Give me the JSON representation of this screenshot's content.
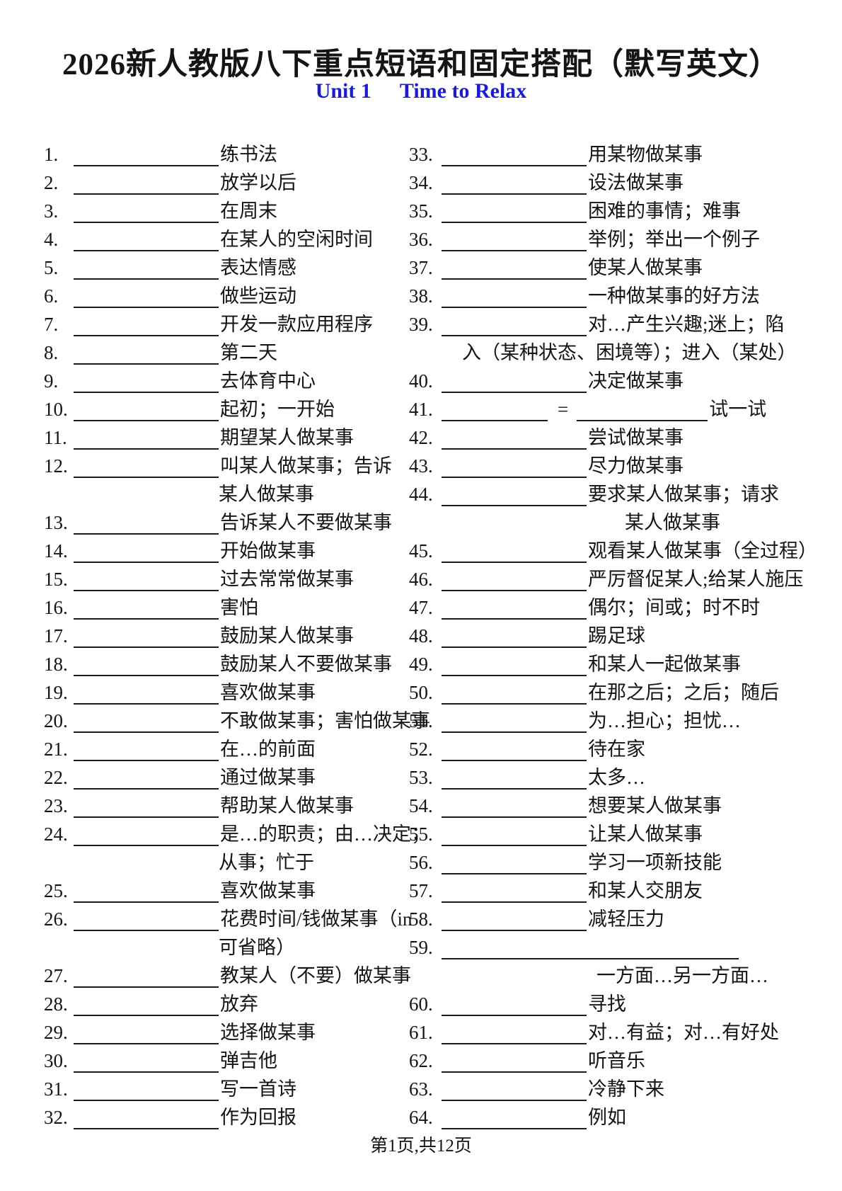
{
  "header": {
    "title": "2026新人教版八下重点短语和固定搭配（默写英文）",
    "unit": "Unit 1",
    "topic": "Time to Relax",
    "subtitle_color": "#1b1bd0"
  },
  "footer": {
    "page_label": "第1页,共12页"
  },
  "symbols": {
    "equals": "="
  },
  "items": {
    "left": [
      {
        "num": "1.",
        "gloss": "练书法"
      },
      {
        "num": "2.",
        "gloss": "放学以后"
      },
      {
        "num": "3.",
        "gloss": "在周末"
      },
      {
        "num": "4.",
        "gloss": "在某人的空闲时间"
      },
      {
        "num": "5.",
        "gloss": "表达情感"
      },
      {
        "num": "6.",
        "gloss": "做些运动"
      },
      {
        "num": "7.",
        "gloss": "开发一款应用程序"
      },
      {
        "num": "8.",
        "gloss": "第二天"
      },
      {
        "num": "9.",
        "gloss": "去体育中心"
      },
      {
        "num": "10.",
        "gloss": "起初；一开始"
      },
      {
        "num": "11.",
        "gloss": "期望某人做某事"
      },
      {
        "num": "12.",
        "gloss": "叫某人做某事；告诉",
        "cont": "某人做某事",
        "cont_align": "gloss"
      },
      {
        "num": "13.",
        "gloss": "告诉某人不要做某事"
      },
      {
        "num": "14.",
        "gloss": "开始做某事"
      },
      {
        "num": "15.",
        "gloss": "过去常常做某事"
      },
      {
        "num": "16.",
        "gloss": "害怕"
      },
      {
        "num": "17.",
        "gloss": "鼓励某人做某事"
      },
      {
        "num": "18.",
        "gloss": "鼓励某人不要做某事"
      },
      {
        "num": "19.",
        "gloss": "喜欢做某事"
      },
      {
        "num": "20.",
        "gloss": "不敢做某事；害怕做某事"
      },
      {
        "num": "21.",
        "gloss": "在…的前面"
      },
      {
        "num": "22.",
        "gloss": "通过做某事"
      },
      {
        "num": "23.",
        "gloss": "帮助某人做某事"
      },
      {
        "num": "24.",
        "gloss": "是…的职责；由…决定；",
        "cont": "从事；忙于",
        "cont_align": "gloss"
      },
      {
        "num": "25.",
        "gloss": "喜欢做某事"
      },
      {
        "num": "26.",
        "gloss": "花费时间/钱做某事（in",
        "cont": "可省略）",
        "cont_align": "gloss"
      },
      {
        "num": "27.",
        "gloss": "教某人（不要）做某事"
      },
      {
        "num": "28.",
        "gloss": "放弃"
      },
      {
        "num": "29.",
        "gloss": "选择做某事"
      },
      {
        "num": "30.",
        "gloss": "弹吉他"
      },
      {
        "num": "31.",
        "gloss": "写一首诗"
      },
      {
        "num": "32.",
        "gloss": "作为回报"
      }
    ],
    "right": [
      {
        "num": "33.",
        "gloss": "用某物做某事"
      },
      {
        "num": "34.",
        "gloss": "设法做某事"
      },
      {
        "num": "35.",
        "gloss": "困难的事情；难事"
      },
      {
        "num": "36.",
        "gloss": "举例；举出一个例子"
      },
      {
        "num": "37.",
        "gloss": "使某人做某事"
      },
      {
        "num": "38.",
        "gloss": "一种做某事的好方法"
      },
      {
        "num": "39.",
        "gloss": "对…产生兴趣;迷上；陷",
        "cont": "入（某种状态、困境等）；进入（某处）",
        "cont_align": "hang"
      },
      {
        "num": "40.",
        "gloss": "决定做某事"
      },
      {
        "num": "41.",
        "type": "double",
        "gloss": "试一试"
      },
      {
        "num": "42.",
        "gloss": "尝试做某事"
      },
      {
        "num": "43.",
        "gloss": "尽力做某事"
      },
      {
        "num": "44.",
        "gloss": "要求某人做某事；请求",
        "cont": "某人做某事",
        "cont_align": "deep"
      },
      {
        "num": "45.",
        "gloss": "观看某人做某事（全过程）"
      },
      {
        "num": "46.",
        "gloss": "严厉督促某人;给某人施压"
      },
      {
        "num": "47.",
        "gloss": "偶尔；间或；时不时"
      },
      {
        "num": "48.",
        "gloss": "踢足球"
      },
      {
        "num": "49.",
        "gloss": "和某人一起做某事"
      },
      {
        "num": "50.",
        "gloss": "在那之后；之后；随后"
      },
      {
        "num": "51.",
        "gloss": "为…担心；担忧…"
      },
      {
        "num": "52.",
        "gloss": "待在家"
      },
      {
        "num": "53.",
        "gloss": "太多…"
      },
      {
        "num": "54.",
        "gloss": "想要某人做某事"
      },
      {
        "num": "55.",
        "gloss": "让某人做某事"
      },
      {
        "num": "56.",
        "gloss": "学习一项新技能"
      },
      {
        "num": "57.",
        "gloss": "和某人交朋友"
      },
      {
        "num": "58.",
        "gloss": "减轻压力"
      },
      {
        "num": "59.",
        "type": "full",
        "cont": "一方面…另一方面…",
        "cont_align": "mid"
      },
      {
        "num": "60.",
        "gloss": "寻找"
      },
      {
        "num": "61.",
        "gloss": "对…有益；对…有好处"
      },
      {
        "num": "62.",
        "gloss": "听音乐"
      },
      {
        "num": "63.",
        "gloss": "冷静下来"
      },
      {
        "num": "64.",
        "gloss": "例如"
      }
    ]
  }
}
